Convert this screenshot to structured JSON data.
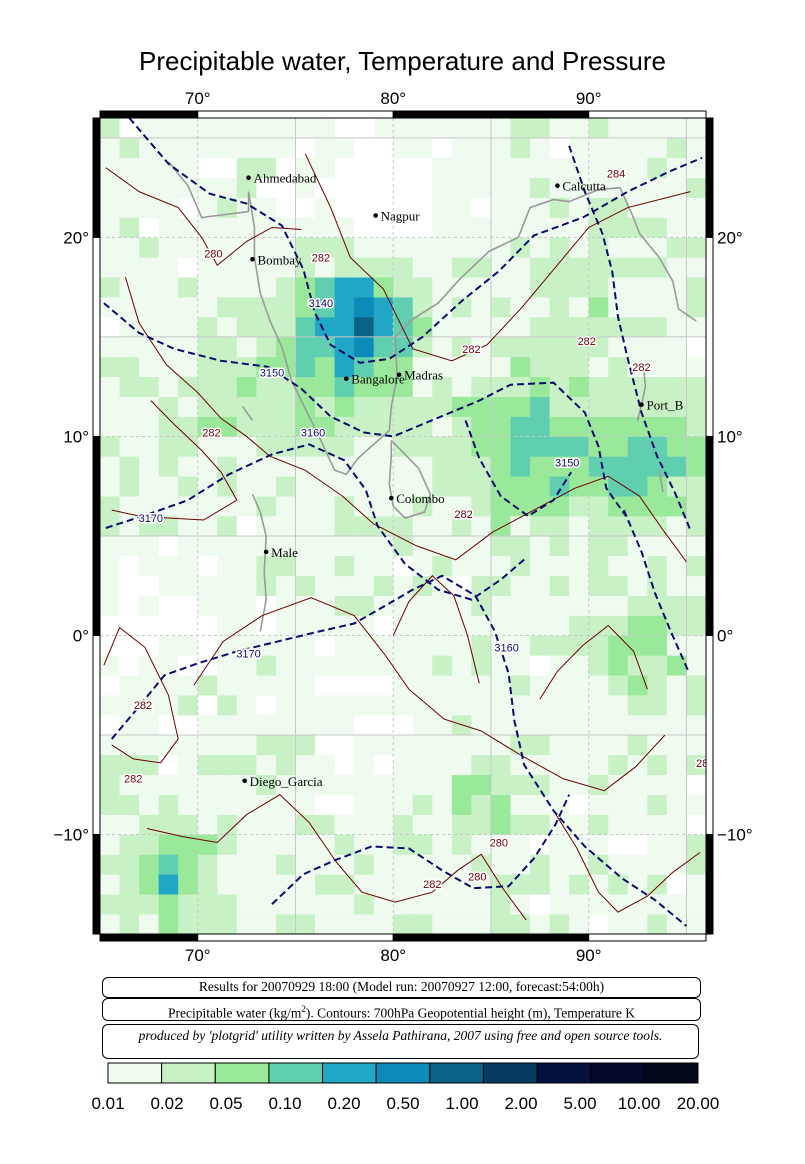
{
  "title": "Precipitable water, Temperature and Pressure",
  "map": {
    "lon_range": [
      65,
      96
    ],
    "lat_range": [
      -15,
      26
    ],
    "top_lon_ticks": [
      "70°",
      "80°",
      "90°"
    ],
    "bottom_lon_ticks": [
      "70°",
      "80°",
      "90°"
    ],
    "left_lat_ticks": [
      "20°",
      "10°",
      "0°",
      "−10°"
    ],
    "right_lat_ticks": [
      "20°",
      "10°",
      "0°",
      "−10°"
    ],
    "cities": [
      {
        "name": "Ahmedabad",
        "lon": 72.6,
        "lat": 23.0
      },
      {
        "name": "Nagpur",
        "lon": 79.1,
        "lat": 21.1
      },
      {
        "name": "Calcutta",
        "lon": 88.4,
        "lat": 22.6
      },
      {
        "name": "Bombay",
        "lon": 72.8,
        "lat": 18.9
      },
      {
        "name": "Bangalore",
        "lon": 77.6,
        "lat": 12.9
      },
      {
        "name": "Madras",
        "lon": 80.3,
        "lat": 13.1
      },
      {
        "name": "Port_B",
        "lon": 92.7,
        "lat": 11.6
      },
      {
        "name": "Colombo",
        "lon": 79.9,
        "lat": 6.9
      },
      {
        "name": "Male",
        "lon": 73.5,
        "lat": 4.2
      },
      {
        "name": "Diego_Garcia",
        "lon": 72.4,
        "lat": -7.3
      }
    ],
    "contour_labels": [
      {
        "text": "280",
        "lon": 70.8,
        "lat": 19.0,
        "kind": "temperature"
      },
      {
        "text": "282",
        "lon": 76.3,
        "lat": 18.8,
        "kind": "temperature"
      },
      {
        "text": "3140",
        "lon": 76.3,
        "lat": 16.5,
        "kind": "height"
      },
      {
        "text": "3150",
        "lon": 73.8,
        "lat": 13.0,
        "kind": "height"
      },
      {
        "text": "3160",
        "lon": 75.9,
        "lat": 10.0,
        "kind": "height"
      },
      {
        "text": "282",
        "lon": 70.7,
        "lat": 10.0,
        "kind": "temperature"
      },
      {
        "text": "282",
        "lon": 84.0,
        "lat": 14.2,
        "kind": "temperature"
      },
      {
        "text": "282",
        "lon": 89.9,
        "lat": 14.6,
        "kind": "temperature"
      },
      {
        "text": "282",
        "lon": 92.7,
        "lat": 13.3,
        "kind": "temperature"
      },
      {
        "text": "3150",
        "lon": 88.9,
        "lat": 8.5,
        "kind": "height"
      },
      {
        "text": "282",
        "lon": 83.6,
        "lat": 5.9,
        "kind": "temperature"
      },
      {
        "text": "3170",
        "lon": 67.6,
        "lat": 5.7,
        "kind": "height"
      },
      {
        "text": "3170",
        "lon": 72.6,
        "lat": -1.1,
        "kind": "height"
      },
      {
        "text": "3160",
        "lon": 85.8,
        "lat": -0.8,
        "kind": "height"
      },
      {
        "text": "282",
        "lon": 67.2,
        "lat": -3.7,
        "kind": "temperature"
      },
      {
        "text": "284",
        "lon": 91.4,
        "lat": 23.0,
        "kind": "temperature"
      },
      {
        "text": "282",
        "lon": 66.7,
        "lat": -7.4,
        "kind": "temperature"
      },
      {
        "text": "280",
        "lon": 85.4,
        "lat": -10.6,
        "kind": "temperature"
      },
      {
        "text": "280",
        "lon": 84.3,
        "lat": -12.3,
        "kind": "temperature"
      },
      {
        "text": "282",
        "lon": 82.0,
        "lat": -12.7,
        "kind": "temperature"
      },
      {
        "text": "28",
        "lon": 95.8,
        "lat": -6.6,
        "kind": "temperature"
      }
    ]
  },
  "info": {
    "results": "Results for 20070929 18:00 (Model run: 20070927 12:00, forecast:54:00h)",
    "legend_prefix": "Precipitable water (kg/m",
    "legend_sup": "2",
    "legend_suffix": ").  Contours: 700hPa Geopotential height (m), Temperature K",
    "credit": "produced by 'plotgrid' utility written by Assela Pathirana, 2007 using free and open source tools."
  },
  "colorbar": {
    "labels": [
      "0.01",
      "0.02",
      "0.05",
      "0.10",
      "0.20",
      "0.50",
      "1.00",
      "2.00",
      "5.00",
      "10.00",
      "20.00"
    ],
    "colors": [
      "#eefbee",
      "#c8f2c6",
      "#9ae89a",
      "#5fcfb0",
      "#21a6c6",
      "#0d8bb8",
      "#096388",
      "#063c62",
      "#04113e",
      "#04092a",
      "#020818"
    ]
  },
  "colors": {
    "height_contour": "#0b0b6e",
    "temperature_contour": "#6e0000",
    "coastline": "#9a9a9a",
    "grid": "#c8c8c8"
  }
}
